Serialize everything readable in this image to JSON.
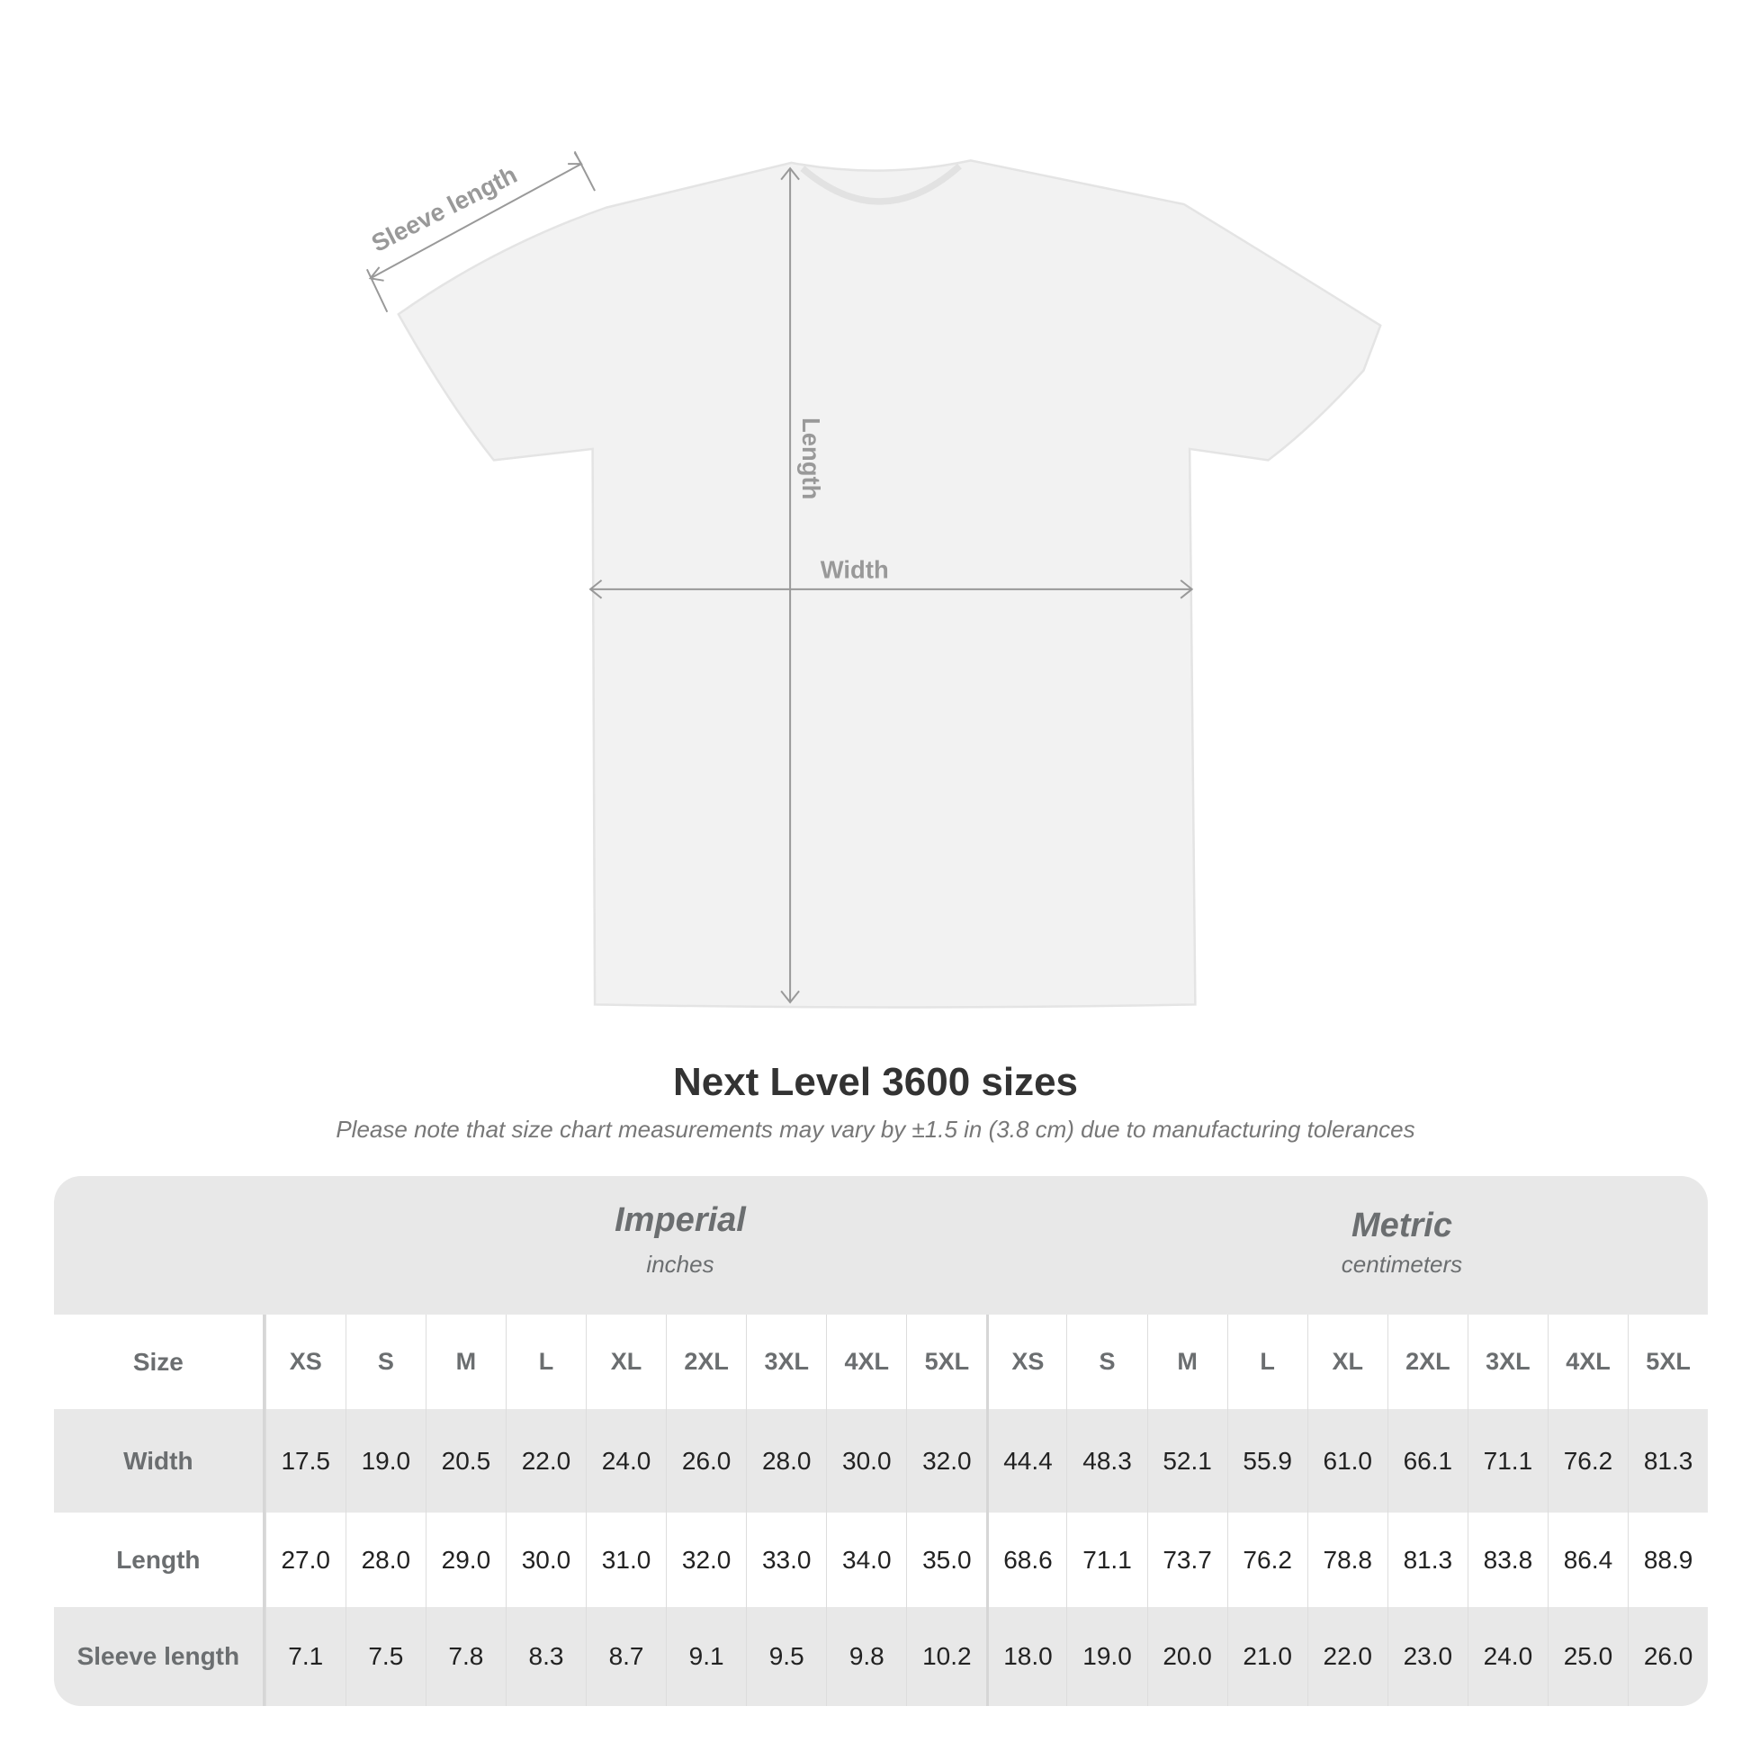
{
  "diagram": {
    "sleeve_label": "Sleeve length",
    "length_label": "Length",
    "width_label": "Width"
  },
  "title": "Next Level 3600 sizes",
  "subtitle": "Please note that size chart measurements may vary by ±1.5 in (3.8 cm) due to manufacturing tolerances",
  "imperial": {
    "name": "Imperial",
    "unit": "inches"
  },
  "metric": {
    "name": "Metric",
    "unit": "centimeters"
  },
  "table": {
    "size_label": "Size",
    "sizes": [
      "XS",
      "S",
      "M",
      "L",
      "XL",
      "2XL",
      "3XL",
      "4XL",
      "5XL",
      "XS",
      "S",
      "M",
      "L",
      "XL",
      "2XL",
      "3XL",
      "4XL",
      "5XL"
    ],
    "rows": [
      {
        "label": "Width",
        "values": [
          "17.5",
          "19.0",
          "20.5",
          "22.0",
          "24.0",
          "26.0",
          "28.0",
          "30.0",
          "32.0",
          "44.4",
          "48.3",
          "52.1",
          "55.9",
          "61.0",
          "66.1",
          "71.1",
          "76.2",
          "81.3"
        ]
      },
      {
        "label": "Length",
        "values": [
          "27.0",
          "28.0",
          "29.0",
          "30.0",
          "31.0",
          "32.0",
          "33.0",
          "34.0",
          "35.0",
          "68.6",
          "71.1",
          "73.7",
          "76.2",
          "78.8",
          "81.3",
          "83.8",
          "86.4",
          "88.9"
        ]
      },
      {
        "label": "Sleeve length",
        "values": [
          "7.1",
          "7.5",
          "7.8",
          "8.3",
          "8.7",
          "9.1",
          "9.5",
          "9.8",
          "10.2",
          "18.0",
          "19.0",
          "20.0",
          "21.0",
          "22.0",
          "23.0",
          "24.0",
          "25.0",
          "26.0"
        ]
      }
    ]
  }
}
